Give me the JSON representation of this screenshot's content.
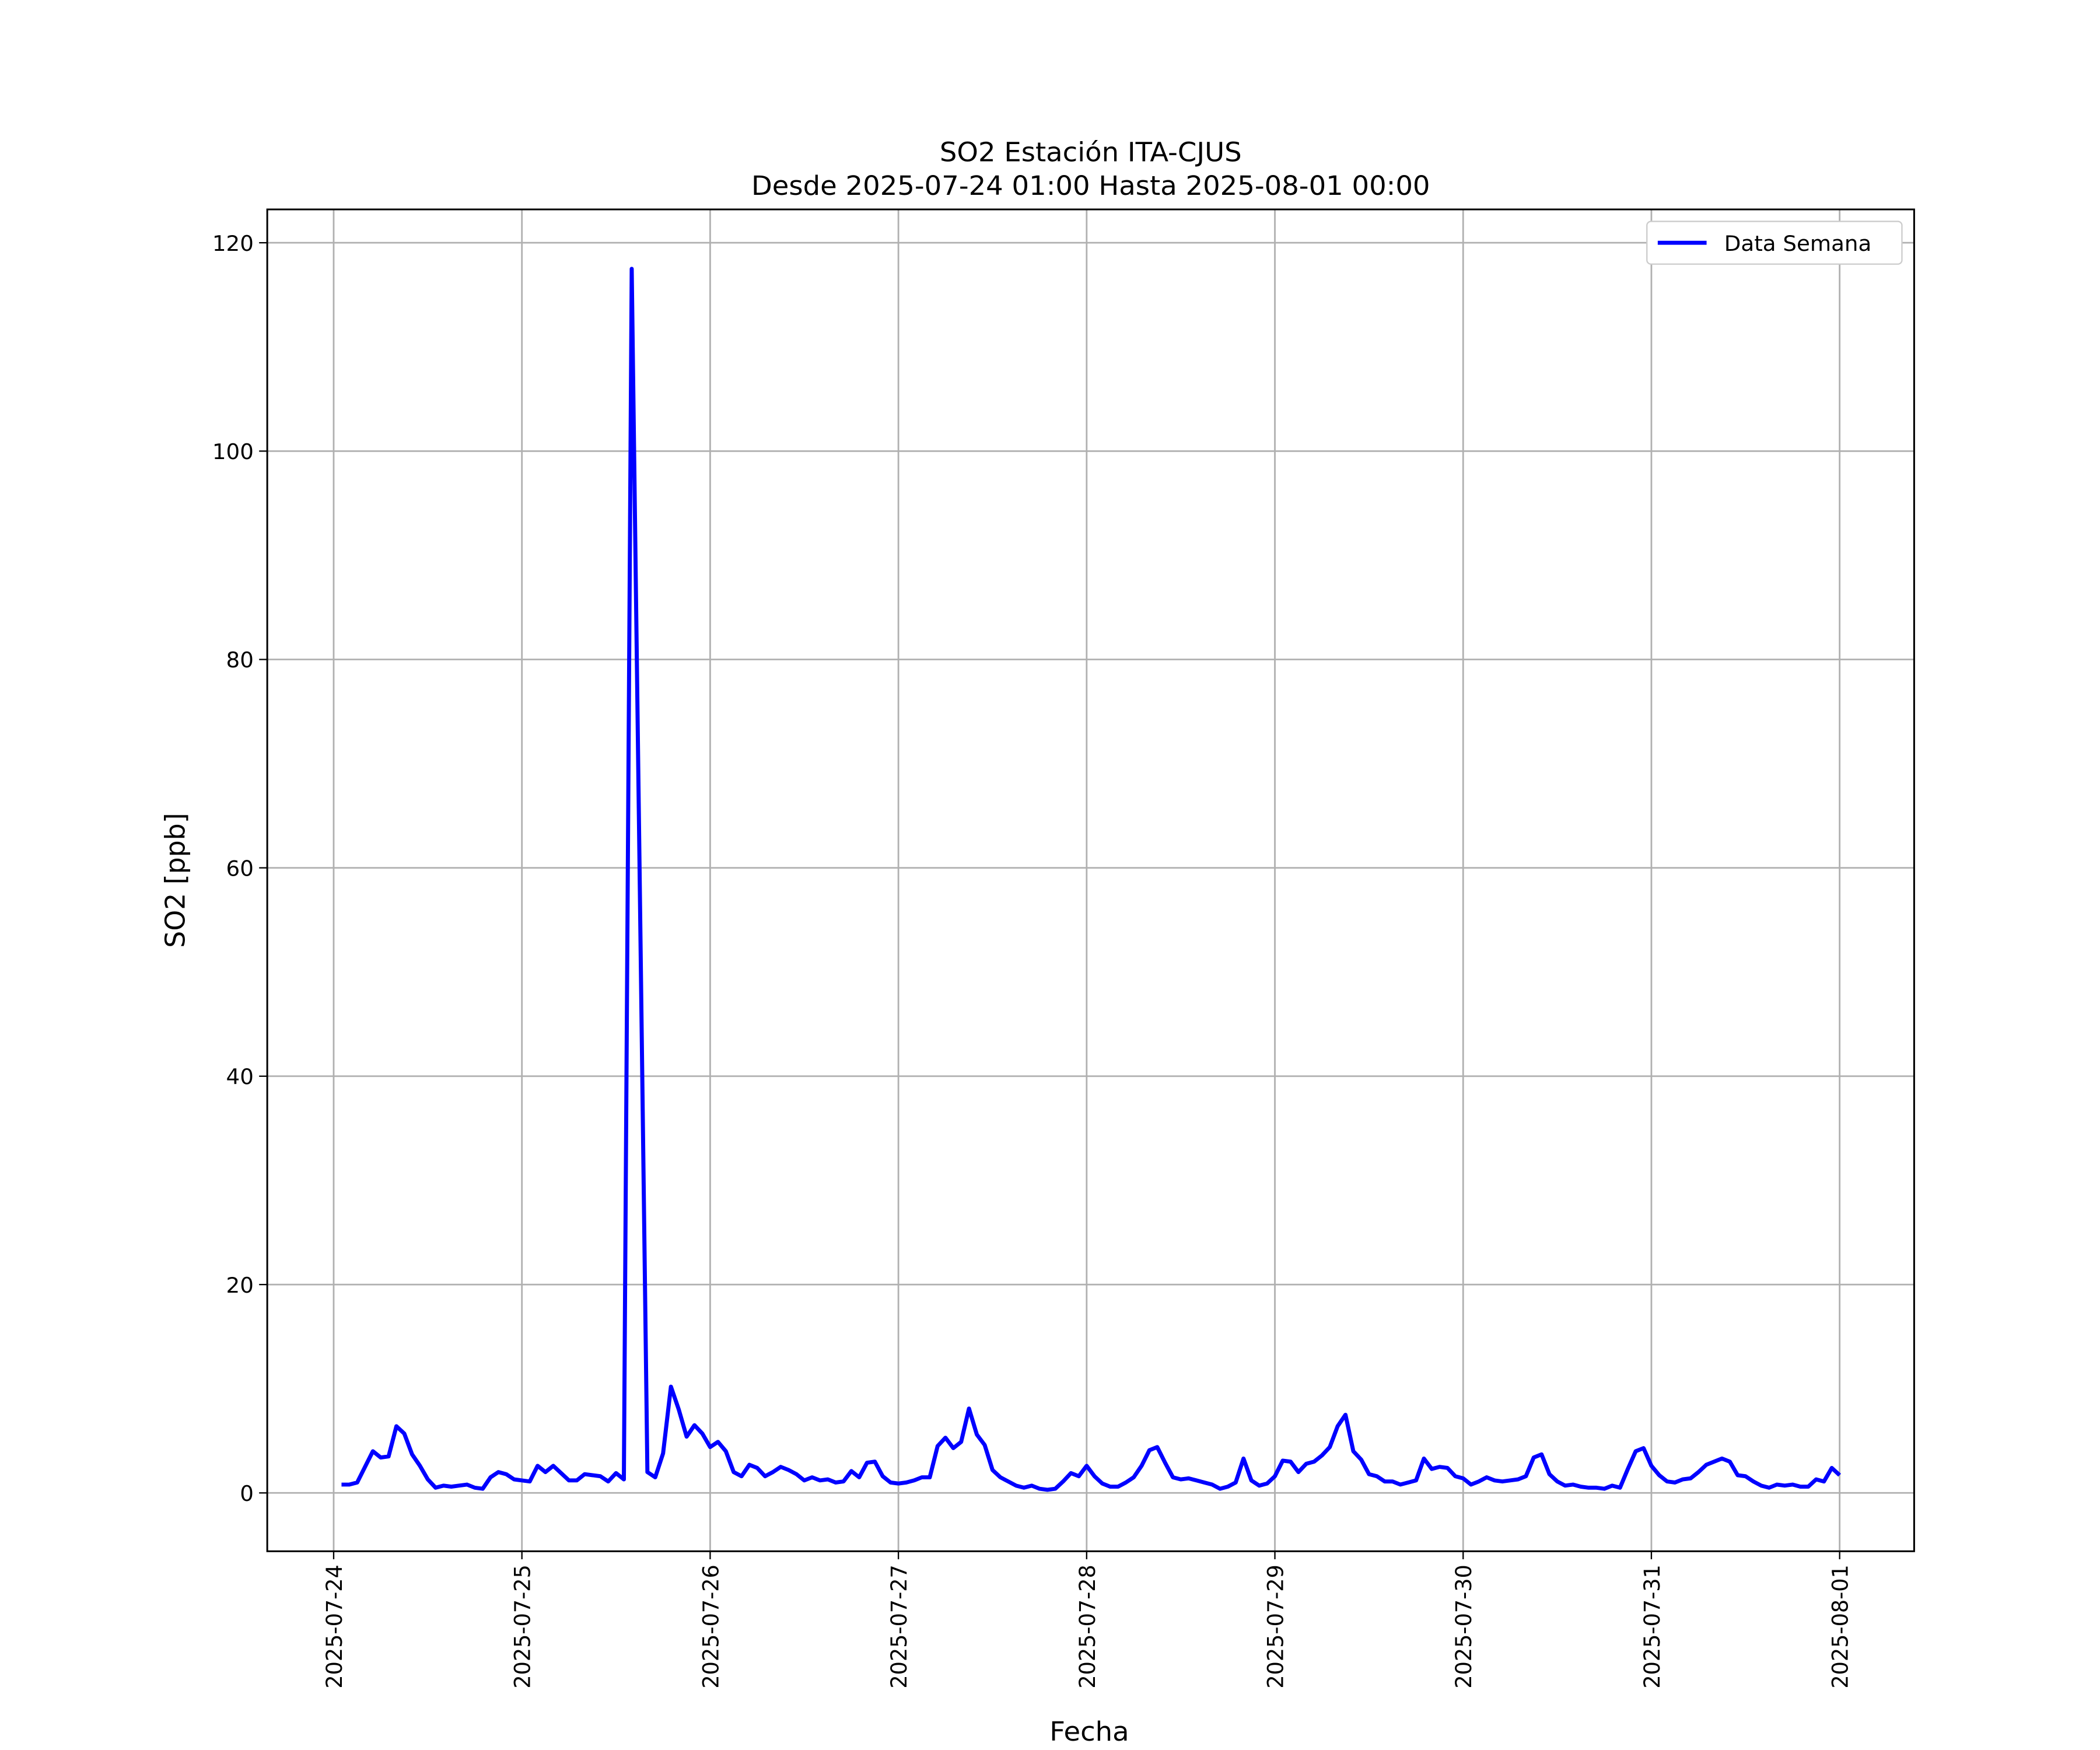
{
  "chart_data": {
    "type": "line",
    "title": "SO2 Estación ITA-CJUS",
    "subtitle": "Desde 2025-07-24 01:00 Hasta 2025-08-01 00:00",
    "x_label": "Fecha",
    "y_label": "SO2 [ppb]",
    "x": [
      "2025-07-24 01:00",
      "2025-07-24 02:00",
      "2025-07-24 03:00",
      "2025-07-24 04:00",
      "2025-07-24 05:00",
      "2025-07-24 06:00",
      "2025-07-24 07:00",
      "2025-07-24 08:00",
      "2025-07-24 09:00",
      "2025-07-24 10:00",
      "2025-07-24 11:00",
      "2025-07-24 12:00",
      "2025-07-24 13:00",
      "2025-07-24 14:00",
      "2025-07-24 15:00",
      "2025-07-24 16:00",
      "2025-07-24 17:00",
      "2025-07-24 18:00",
      "2025-07-24 19:00",
      "2025-07-24 20:00",
      "2025-07-24 21:00",
      "2025-07-24 22:00",
      "2025-07-24 23:00",
      "2025-07-25 00:00",
      "2025-07-25 01:00",
      "2025-07-25 02:00",
      "2025-07-25 03:00",
      "2025-07-25 04:00",
      "2025-07-25 05:00",
      "2025-07-25 06:00",
      "2025-07-25 07:00",
      "2025-07-25 08:00",
      "2025-07-25 09:00",
      "2025-07-25 10:00",
      "2025-07-25 11:00",
      "2025-07-25 12:00",
      "2025-07-25 13:00",
      "2025-07-25 14:00",
      "2025-07-25 15:00",
      "2025-07-25 16:00",
      "2025-07-25 17:00",
      "2025-07-25 18:00",
      "2025-07-25 19:00",
      "2025-07-25 20:00",
      "2025-07-25 21:00",
      "2025-07-25 22:00",
      "2025-07-25 23:00",
      "2025-07-26 00:00",
      "2025-07-26 01:00",
      "2025-07-26 02:00",
      "2025-07-26 03:00",
      "2025-07-26 04:00",
      "2025-07-26 05:00",
      "2025-07-26 06:00",
      "2025-07-26 07:00",
      "2025-07-26 08:00",
      "2025-07-26 09:00",
      "2025-07-26 10:00",
      "2025-07-26 11:00",
      "2025-07-26 12:00",
      "2025-07-26 13:00",
      "2025-07-26 14:00",
      "2025-07-26 15:00",
      "2025-07-26 16:00",
      "2025-07-26 17:00",
      "2025-07-26 18:00",
      "2025-07-26 19:00",
      "2025-07-26 20:00",
      "2025-07-26 21:00",
      "2025-07-26 22:00",
      "2025-07-26 23:00",
      "2025-07-27 00:00",
      "2025-07-27 01:00",
      "2025-07-27 02:00",
      "2025-07-27 03:00",
      "2025-07-27 04:00",
      "2025-07-27 05:00",
      "2025-07-27 06:00",
      "2025-07-27 07:00",
      "2025-07-27 08:00",
      "2025-07-27 09:00",
      "2025-07-27 10:00",
      "2025-07-27 11:00",
      "2025-07-27 12:00",
      "2025-07-27 13:00",
      "2025-07-27 14:00",
      "2025-07-27 15:00",
      "2025-07-27 16:00",
      "2025-07-27 17:00",
      "2025-07-27 18:00",
      "2025-07-27 19:00",
      "2025-07-27 20:00",
      "2025-07-27 21:00",
      "2025-07-27 22:00",
      "2025-07-27 23:00",
      "2025-07-28 00:00",
      "2025-07-28 01:00",
      "2025-07-28 02:00",
      "2025-07-28 03:00",
      "2025-07-28 04:00",
      "2025-07-28 05:00",
      "2025-07-28 06:00",
      "2025-07-28 07:00",
      "2025-07-28 08:00",
      "2025-07-28 09:00",
      "2025-07-28 10:00",
      "2025-07-28 11:00",
      "2025-07-28 12:00",
      "2025-07-28 13:00",
      "2025-07-28 14:00",
      "2025-07-28 15:00",
      "2025-07-28 16:00",
      "2025-07-28 17:00",
      "2025-07-28 18:00",
      "2025-07-28 19:00",
      "2025-07-28 20:00",
      "2025-07-28 21:00",
      "2025-07-28 22:00",
      "2025-07-28 23:00",
      "2025-07-29 00:00",
      "2025-07-29 01:00",
      "2025-07-29 02:00",
      "2025-07-29 03:00",
      "2025-07-29 04:00",
      "2025-07-29 05:00",
      "2025-07-29 06:00",
      "2025-07-29 07:00",
      "2025-07-29 08:00",
      "2025-07-29 09:00",
      "2025-07-29 10:00",
      "2025-07-29 11:00",
      "2025-07-29 12:00",
      "2025-07-29 13:00",
      "2025-07-29 14:00",
      "2025-07-29 15:00",
      "2025-07-29 16:00",
      "2025-07-29 17:00",
      "2025-07-29 18:00",
      "2025-07-29 19:00",
      "2025-07-29 20:00",
      "2025-07-29 21:00",
      "2025-07-29 22:00",
      "2025-07-29 23:00",
      "2025-07-30 00:00",
      "2025-07-30 01:00",
      "2025-07-30 02:00",
      "2025-07-30 03:00",
      "2025-07-30 04:00",
      "2025-07-30 05:00",
      "2025-07-30 06:00",
      "2025-07-30 07:00",
      "2025-07-30 08:00",
      "2025-07-30 09:00",
      "2025-07-30 10:00",
      "2025-07-30 11:00",
      "2025-07-30 12:00",
      "2025-07-30 13:00",
      "2025-07-30 14:00",
      "2025-07-30 15:00",
      "2025-07-30 16:00",
      "2025-07-30 17:00",
      "2025-07-30 18:00",
      "2025-07-30 19:00",
      "2025-07-30 20:00",
      "2025-07-30 21:00",
      "2025-07-30 22:00",
      "2025-07-30 23:00",
      "2025-07-31 00:00",
      "2025-07-31 01:00",
      "2025-07-31 02:00",
      "2025-07-31 03:00",
      "2025-07-31 04:00",
      "2025-07-31 05:00",
      "2025-07-31 06:00",
      "2025-07-31 07:00",
      "2025-07-31 08:00",
      "2025-07-31 09:00",
      "2025-07-31 10:00",
      "2025-07-31 11:00",
      "2025-07-31 12:00",
      "2025-07-31 13:00",
      "2025-07-31 14:00",
      "2025-07-31 15:00",
      "2025-07-31 16:00",
      "2025-07-31 17:00",
      "2025-07-31 18:00",
      "2025-07-31 19:00",
      "2025-07-31 20:00",
      "2025-07-31 21:00",
      "2025-07-31 22:00",
      "2025-07-31 23:00",
      "2025-08-01 00:00"
    ],
    "series": [
      {
        "name": "Data Semana",
        "color": "#0000ff",
        "values": [
          0.8,
          0.8,
          1.0,
          2.5,
          4.0,
          3.4,
          3.5,
          6.4,
          5.7,
          3.7,
          2.6,
          1.3,
          0.5,
          0.7,
          0.6,
          0.7,
          0.8,
          0.5,
          0.4,
          1.5,
          2.0,
          1.8,
          1.3,
          1.2,
          1.1,
          2.6,
          2.0,
          2.6,
          1.9,
          1.2,
          1.2,
          1.8,
          1.7,
          1.6,
          1.1,
          1.9,
          1.3,
          117.5,
          60,
          2.0,
          1.5,
          3.8,
          10.2,
          8.0,
          5.4,
          6.5,
          5.7,
          4.4,
          4.9,
          4.0,
          2.0,
          1.6,
          2.7,
          2.4,
          1.6,
          2.0,
          2.5,
          2.2,
          1.8,
          1.2,
          1.5,
          1.2,
          1.3,
          1.0,
          1.1,
          2.1,
          1.5,
          2.9,
          3.0,
          1.6,
          1.0,
          0.9,
          1.0,
          1.2,
          1.5,
          1.5,
          4.5,
          5.3,
          4.3,
          4.9,
          8.1,
          5.6,
          4.6,
          2.2,
          1.5,
          1.1,
          0.7,
          0.5,
          0.7,
          0.4,
          0.3,
          0.4,
          1.1,
          1.9,
          1.6,
          2.6,
          1.6,
          0.9,
          0.6,
          0.6,
          1.0,
          1.5,
          2.6,
          4.1,
          4.4,
          2.9,
          1.5,
          1.3,
          1.4,
          1.2,
          1.0,
          0.8,
          0.4,
          0.6,
          1.0,
          3.3,
          1.2,
          0.7,
          0.9,
          1.6,
          3.1,
          3.0,
          2.0,
          2.8,
          3.0,
          3.6,
          4.4,
          6.4,
          7.5,
          4.0,
          3.2,
          1.8,
          1.6,
          1.1,
          1.1,
          0.8,
          1.0,
          1.2,
          3.3,
          2.3,
          2.5,
          2.4,
          1.6,
          1.4,
          0.8,
          1.1,
          1.5,
          1.2,
          1.1,
          1.2,
          1.3,
          1.6,
          3.4,
          3.7,
          1.8,
          1.1,
          0.7,
          0.8,
          0.6,
          0.5,
          0.5,
          0.4,
          0.7,
          0.5,
          2.3,
          4.0,
          4.3,
          2.6,
          1.7,
          1.1,
          1.0,
          1.3,
          1.4,
          2.0,
          2.7,
          3.0,
          3.3,
          3.0,
          1.7,
          1.6,
          1.1,
          0.7,
          0.5,
          0.8,
          0.7,
          0.8,
          0.6,
          0.6,
          1.3,
          1.1,
          2.4,
          1.7
        ]
      }
    ],
    "xlim": [
      "2025-07-23 15:32",
      "2025-08-01 09:30"
    ],
    "xticks": [
      "2025-07-24",
      "2025-07-25",
      "2025-07-26",
      "2025-07-27",
      "2025-07-28",
      "2025-07-29",
      "2025-07-30",
      "2025-07-31",
      "2025-08-01"
    ],
    "ylim": [
      -5.6,
      123.2
    ],
    "yticks": [
      0,
      20,
      40,
      60,
      80,
      100,
      120
    ],
    "grid": true,
    "legend": "upper right"
  }
}
